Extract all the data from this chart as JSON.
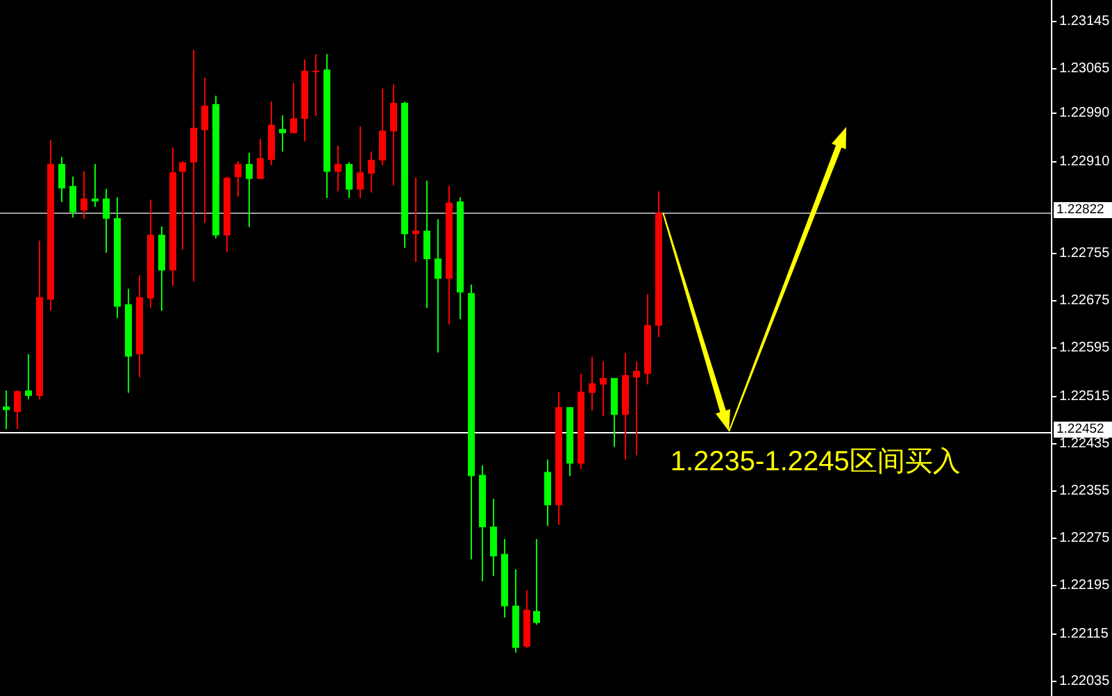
{
  "chart_data": {
    "type": "candlestick",
    "categories": [
      null,
      null,
      null,
      null,
      null,
      null,
      null,
      null,
      null,
      null,
      null,
      null,
      null,
      null,
      null,
      null,
      null,
      null,
      null,
      null,
      null,
      null,
      null,
      null,
      null,
      null,
      null,
      null,
      null,
      null,
      null,
      null,
      null,
      null,
      null,
      null,
      null,
      null,
      null,
      null,
      null,
      null,
      null,
      null,
      null,
      null,
      null,
      null,
      null,
      null,
      null,
      null,
      null,
      null,
      null,
      null,
      null,
      null,
      null,
      null,
      null,
      null,
      null,
      null,
      null,
      null,
      null,
      null,
      null,
      null,
      null,
      null,
      null,
      null,
      null,
      null,
      null,
      null,
      null,
      null,
      null,
      null,
      null,
      null,
      null,
      null,
      null,
      null,
      null,
      null,
      null,
      null,
      null,
      null,
      null
    ],
    "ohlc": [
      [
        1.22496,
        1.22523,
        1.22458,
        1.2249
      ],
      [
        1.22487,
        1.22523,
        1.22458,
        1.22522
      ],
      [
        1.22523,
        1.22584,
        1.22508,
        1.22514
      ],
      [
        1.22514,
        1.22775,
        1.22508,
        1.2268
      ],
      [
        1.22676,
        1.22944,
        1.22658,
        1.22904
      ],
      [
        1.22904,
        1.22916,
        1.2284,
        1.22863
      ],
      [
        1.22867,
        1.22883,
        1.22814,
        1.22823
      ],
      [
        1.22826,
        1.22892,
        1.22812,
        1.22846
      ],
      [
        1.22846,
        1.22904,
        1.22832,
        1.22841
      ],
      [
        1.22846,
        1.22862,
        1.22755,
        1.22812
      ],
      [
        1.22813,
        1.22848,
        1.22645,
        1.22664
      ],
      [
        1.22668,
        1.22694,
        1.22519,
        1.2258
      ],
      [
        1.22584,
        1.22717,
        1.22545,
        1.2268
      ],
      [
        1.22678,
        1.22844,
        1.22662,
        1.22785
      ],
      [
        1.22785,
        1.22799,
        1.22657,
        1.22725
      ],
      [
        1.22725,
        1.22932,
        1.22699,
        1.2289
      ],
      [
        1.22891,
        1.22909,
        1.2276,
        1.22907
      ],
      [
        1.22907,
        1.23096,
        1.22706,
        1.22965
      ],
      [
        1.22961,
        1.23049,
        1.22805,
        1.23002
      ],
      [
        1.23005,
        1.23019,
        1.22779,
        1.22784
      ],
      [
        1.22784,
        1.22883,
        1.22756,
        1.22881
      ],
      [
        1.22882,
        1.22909,
        1.22849,
        1.22904
      ],
      [
        1.22904,
        1.22923,
        1.22798,
        1.22879
      ],
      [
        1.22879,
        1.22946,
        1.22879,
        1.22914
      ],
      [
        1.22911,
        1.23009,
        1.22902,
        1.2297
      ],
      [
        1.22963,
        1.22986,
        1.22925,
        1.22956
      ],
      [
        1.22956,
        1.2304,
        1.22956,
        1.22981
      ],
      [
        1.2298,
        1.2308,
        1.22942,
        1.23061
      ],
      [
        1.23059,
        1.23089,
        1.22985,
        1.23061
      ],
      [
        1.23063,
        1.23089,
        1.22847,
        1.22891
      ],
      [
        1.22891,
        1.22935,
        1.22858,
        1.22904
      ],
      [
        1.22904,
        1.22907,
        1.22847,
        1.22861
      ],
      [
        1.22861,
        1.22967,
        1.22847,
        1.2289
      ],
      [
        1.22888,
        1.22925,
        1.22856,
        1.22911
      ],
      [
        1.2291,
        1.23031,
        1.22902,
        1.2296
      ],
      [
        1.22959,
        1.23038,
        1.22868,
        1.23007
      ],
      [
        1.23007,
        1.23009,
        1.22763,
        1.22786
      ],
      [
        1.22786,
        1.22881,
        1.22739,
        1.22792
      ],
      [
        1.22792,
        1.22876,
        1.22662,
        1.22744
      ],
      [
        1.22745,
        1.22811,
        1.22587,
        1.22711
      ],
      [
        1.22711,
        1.22867,
        1.22634,
        1.22839
      ],
      [
        1.22841,
        1.22848,
        1.22643,
        1.22688
      ],
      [
        1.22687,
        1.22701,
        1.22239,
        1.22379
      ],
      [
        1.22381,
        1.22397,
        1.22202,
        1.22293
      ],
      [
        1.22294,
        1.22341,
        1.22211,
        1.22244
      ],
      [
        1.22248,
        1.22273,
        1.22141,
        1.2216
      ],
      [
        1.22161,
        1.22222,
        1.22082,
        1.2209
      ],
      [
        1.22092,
        1.22187,
        1.2209,
        1.22154
      ],
      [
        1.22152,
        1.22273,
        1.22129,
        1.22132
      ],
      [
        1.22386,
        1.22407,
        1.22295,
        1.2233
      ],
      [
        1.2233,
        1.22521,
        1.22297,
        1.22495
      ],
      [
        1.22495,
        1.22495,
        1.22379,
        1.224
      ],
      [
        1.224,
        1.22551,
        1.22391,
        1.22521
      ],
      [
        1.22519,
        1.2258,
        1.22489,
        1.22535
      ],
      [
        1.22533,
        1.22572,
        1.2248,
        1.22544
      ],
      [
        1.22544,
        1.22544,
        1.22428,
        1.22482
      ],
      [
        1.22482,
        1.22586,
        1.22407,
        1.22549
      ],
      [
        1.22545,
        1.22572,
        1.22414,
        1.22556
      ],
      [
        1.22551,
        1.22685,
        1.22533,
        1.22633
      ],
      [
        1.22632,
        1.22858,
        1.22613,
        1.22822
      ],
      null,
      null,
      null,
      null,
      null,
      null,
      null,
      null,
      null,
      null,
      null,
      null,
      null,
      null,
      null,
      null,
      null,
      null,
      null,
      null,
      null,
      null,
      null,
      null,
      null,
      null,
      null,
      null,
      null,
      null,
      null,
      null,
      null,
      null,
      null
    ],
    "colors": [
      "#00ff00",
      "#ff0000",
      "#00ff00",
      "#ff0000",
      "#ff0000",
      "#00ff00",
      "#00ff00",
      "#ff0000",
      "#00ff00",
      "#00ff00",
      "#00ff00",
      "#00ff00",
      "#ff0000",
      "#ff0000",
      "#00ff00",
      "#ff0000",
      "#ff0000",
      "#ff0000",
      "#ff0000",
      "#00ff00",
      "#ff0000",
      "#ff0000",
      "#00ff00",
      "#ff0000",
      "#ff0000",
      "#00ff00",
      "#ff0000",
      "#ff0000",
      "#ff0000",
      "#00ff00",
      "#ff0000",
      "#00ff00",
      "#ff0000",
      "#ff0000",
      "#ff0000",
      "#ff0000",
      "#00ff00",
      "#ff0000",
      "#00ff00",
      "#00ff00",
      "#ff0000",
      "#00ff00",
      "#00ff00",
      "#00ff00",
      "#00ff00",
      "#00ff00",
      "#00ff00",
      "#ff0000",
      "#00ff00",
      "#00ff00",
      "#ff0000",
      "#00ff00",
      "#ff0000",
      "#ff0000",
      "#ff0000",
      "#00ff00",
      "#ff0000",
      "#ff0000",
      "#ff0000",
      "#ff0000",
      null,
      null,
      null,
      null,
      null,
      null,
      null,
      null,
      null,
      null,
      null,
      null,
      null,
      null,
      null,
      null,
      null,
      null,
      null,
      null,
      null,
      null,
      null,
      null,
      null,
      null,
      null,
      null,
      null,
      null,
      null,
      null,
      null,
      null,
      null
    ],
    "ylim": [
      1.22009,
      1.2318
    ],
    "yticks": [
      1.23145,
      1.23065,
      {
        "value": 1.2299,
        "label": "1.22990"
      },
      {
        "value": 1.2291,
        "label": "1.22910"
      },
      1.22755,
      1.22675,
      1.22595,
      1.22515,
      1.22435,
      1.22355,
      1.22275,
      1.22195,
      1.22115,
      1.22035
    ],
    "ref_lines": [
      {
        "axis": "y",
        "value": 1.22822,
        "label": "1.22822",
        "color": "#a0a0a0"
      },
      {
        "axis": "y",
        "value": 1.22452,
        "label": "1.22452",
        "color": "#ffffff"
      }
    ],
    "annotations": [
      "1.2235-1.2245区间买入"
    ],
    "tick_labels": "y"
  }
}
